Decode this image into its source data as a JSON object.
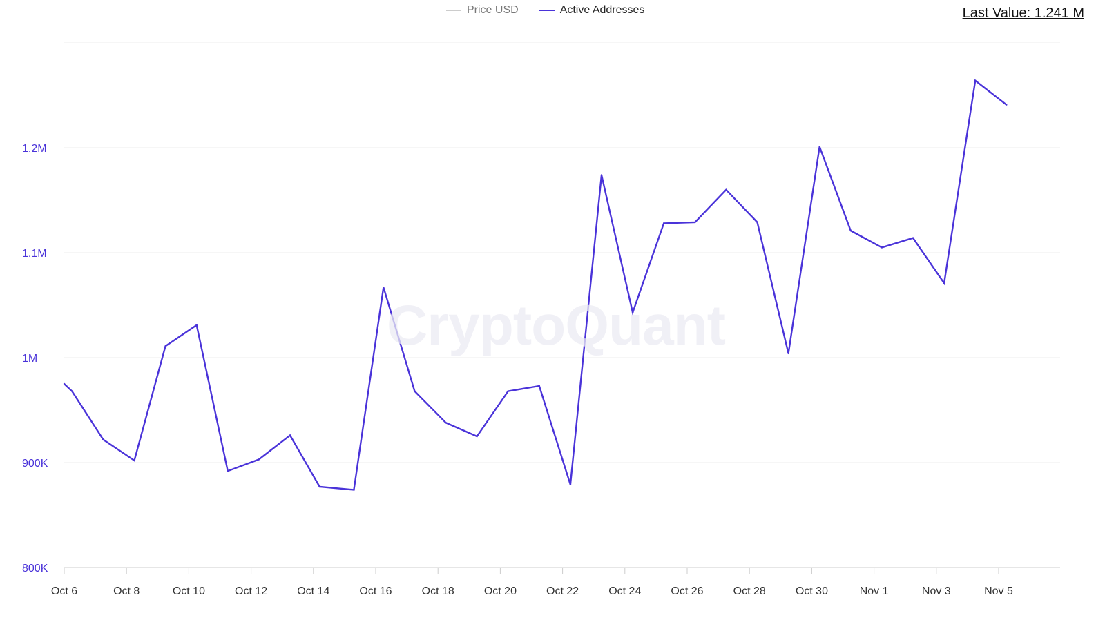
{
  "legend": [
    {
      "label": "Price USD",
      "color": "#cccccc",
      "disabled": true
    },
    {
      "label": "Active Addresses",
      "color": "#4a33d9",
      "disabled": false
    }
  ],
  "last_value": "Last Value: 1.241 M",
  "watermark": "CryptoQuant",
  "colors": {
    "series": "#4a33d9",
    "grid": "#eeeeee",
    "axis_label": "#4a33d9",
    "x_label": "#333333"
  },
  "chart_data": {
    "type": "line",
    "title": "",
    "xlabel": "",
    "ylabel": "",
    "ylim": [
      800000,
      1300000
    ],
    "y_ticks": [
      {
        "value": 800000,
        "label": "800K"
      },
      {
        "value": 900000,
        "label": "900K"
      },
      {
        "value": 1000000,
        "label": "1M"
      },
      {
        "value": 1100000,
        "label": "1.1M"
      },
      {
        "value": 1200000,
        "label": "1.2M"
      },
      {
        "value": 1300000,
        "label": ""
      }
    ],
    "x_tick_labels": [
      "Oct 6",
      "Oct 8",
      "Oct 10",
      "Oct 12",
      "Oct 14",
      "Oct 16",
      "Oct 18",
      "Oct 20",
      "Oct 22",
      "Oct 24",
      "Oct 26",
      "Oct 28",
      "Oct 30",
      "Nov 1",
      "Nov 3",
      "Nov 5"
    ],
    "x_tick_positions": [
      0,
      2,
      4,
      6,
      8,
      10,
      12,
      14,
      16,
      18,
      20,
      22,
      24,
      26,
      28,
      30
    ],
    "x_max": 32,
    "series": [
      {
        "name": "Active Addresses",
        "x": [
          0,
          0.25,
          1.25,
          2.25,
          3.25,
          4.25,
          5.25,
          6.25,
          7.25,
          8.2,
          9.3,
          10.25,
          11.25,
          12.25,
          13.25,
          14.25,
          15.25,
          16.25,
          17.25,
          18.25,
          19.25,
          20.25,
          21.25,
          22.25,
          23.25,
          24.25,
          25.25,
          26.25,
          27.25,
          28.25,
          29.25,
          30.25
        ],
        "values": [
          975000,
          968000,
          922000,
          902000,
          1011000,
          1031000,
          892000,
          903000,
          926000,
          877000,
          874000,
          1067000,
          968000,
          938000,
          925000,
          968000,
          973000,
          879000,
          1174000,
          1043000,
          1128000,
          1129000,
          1160000,
          1129000,
          1004000,
          1201000,
          1121000,
          1105000,
          1114000,
          1071000,
          1264000,
          1241000
        ]
      }
    ],
    "legend": "top-center",
    "grid": true
  }
}
